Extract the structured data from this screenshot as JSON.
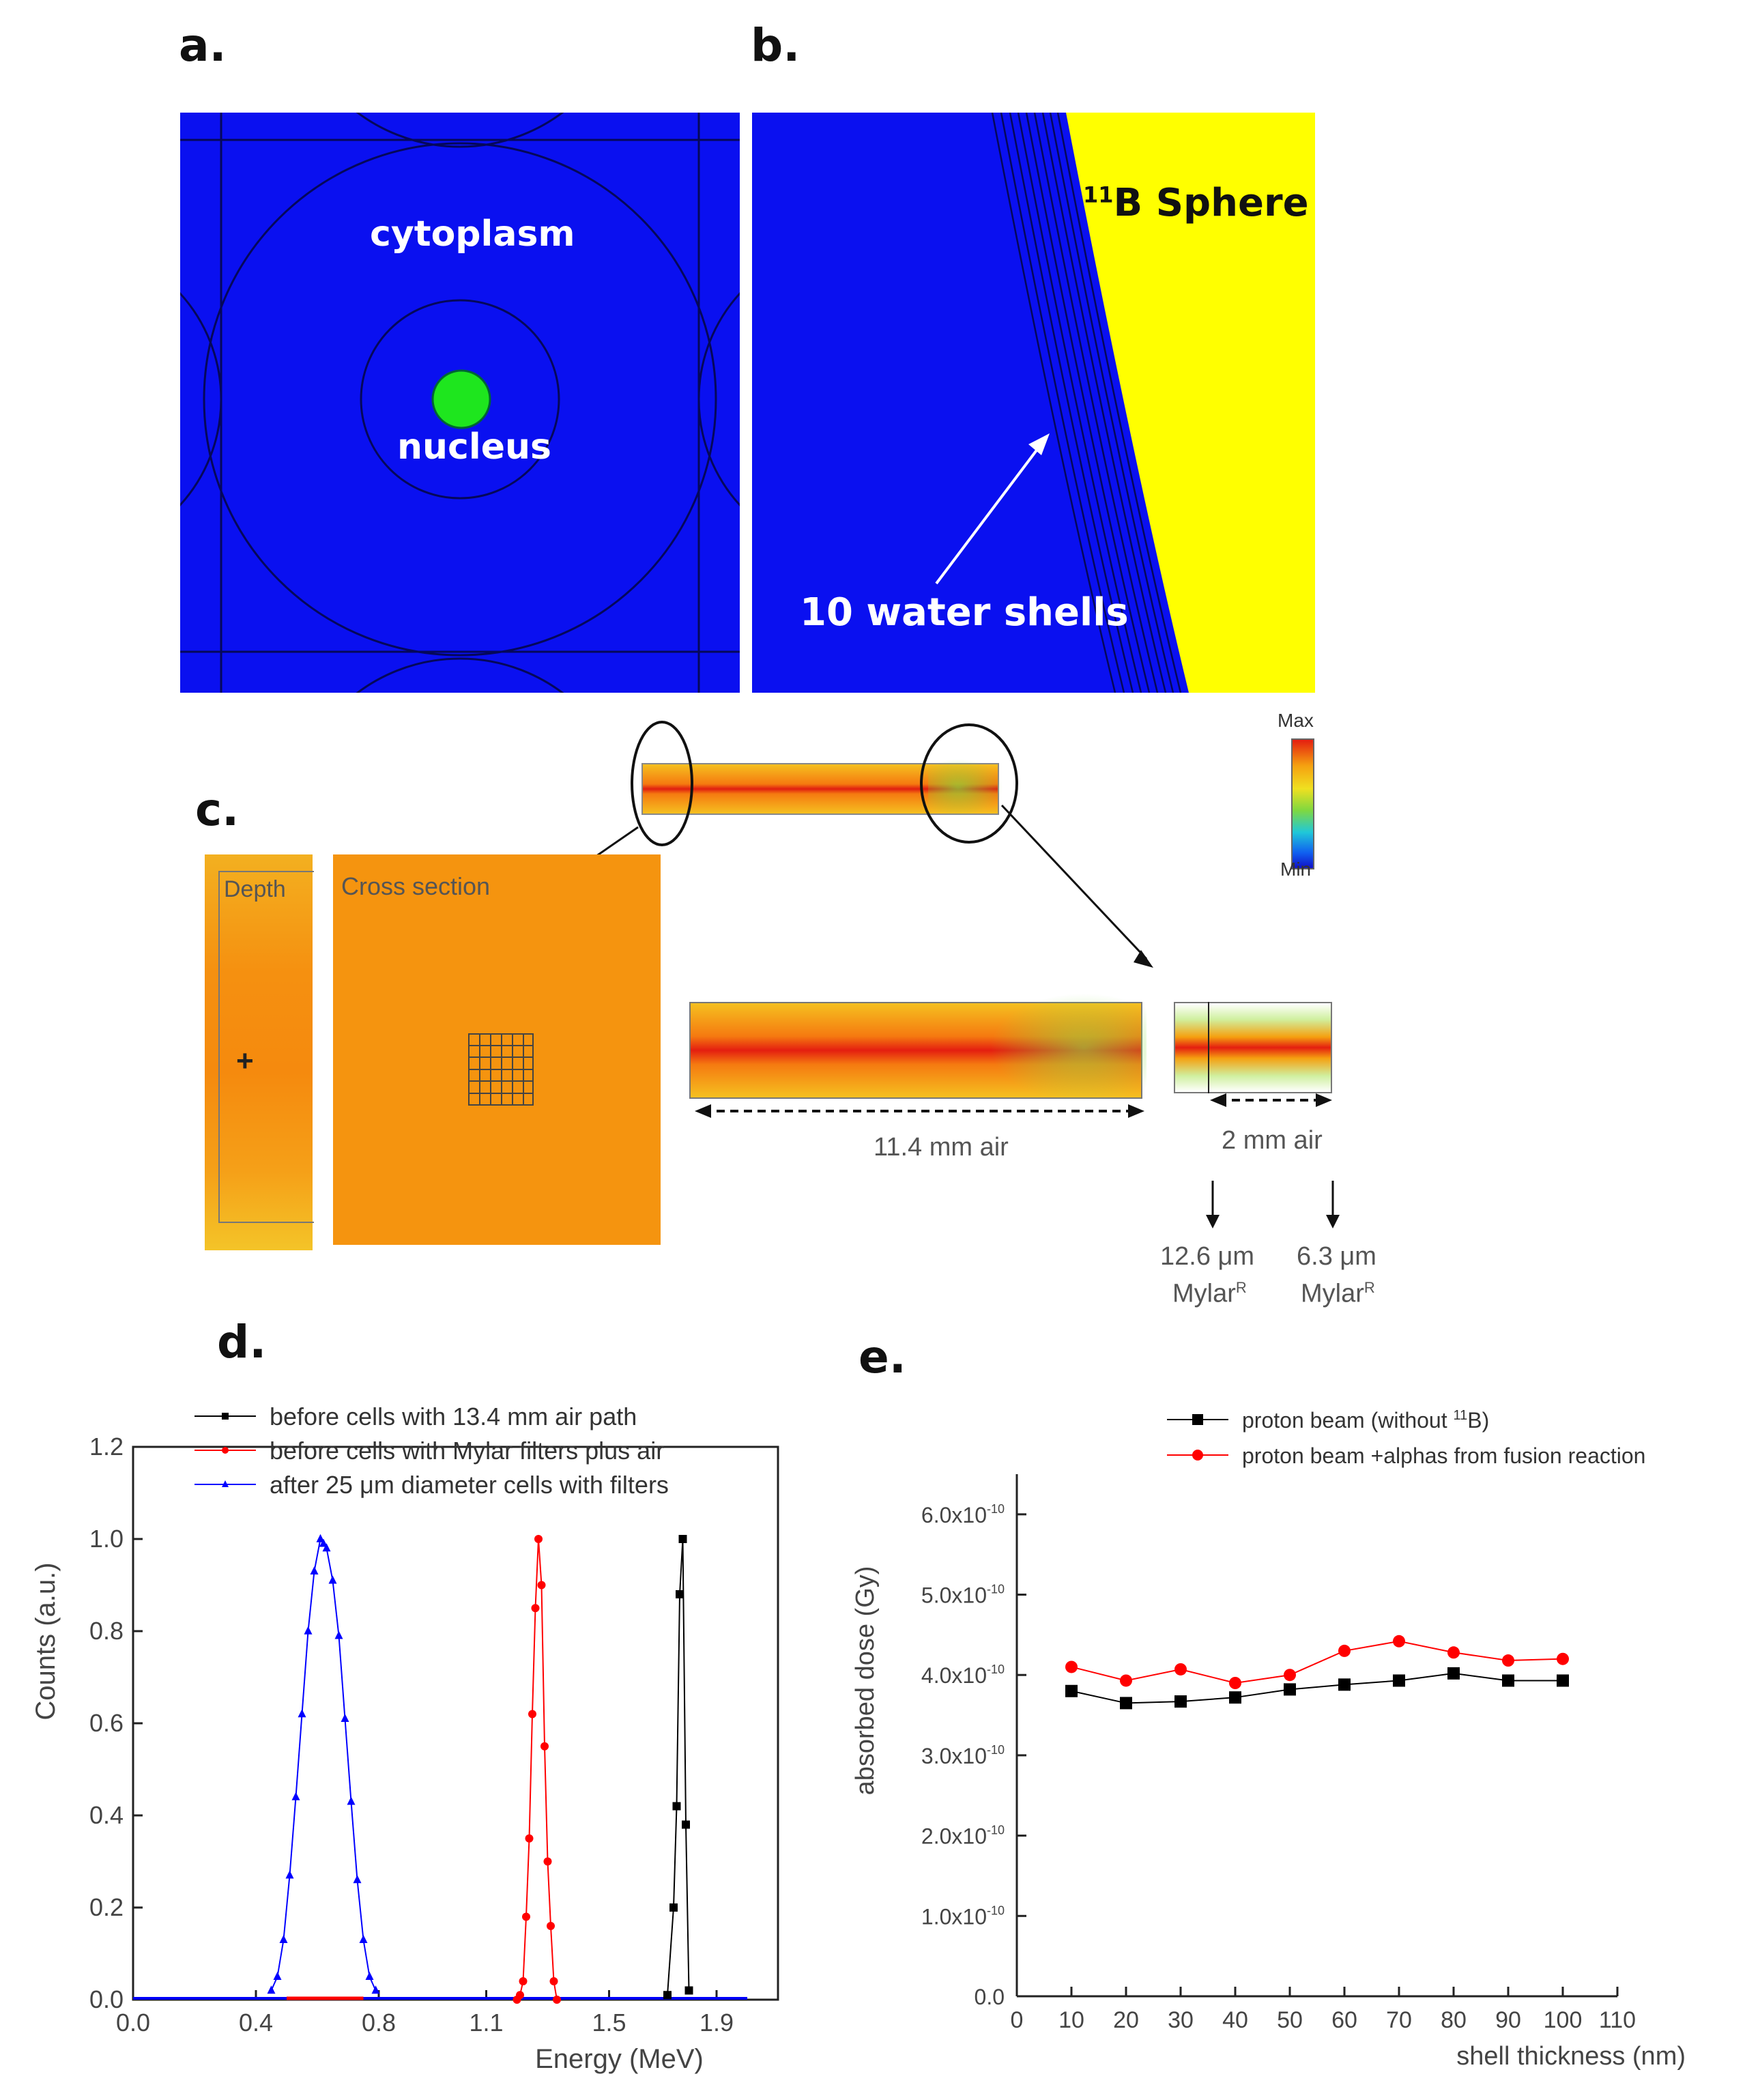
{
  "panels": {
    "a": {
      "letter": "a.",
      "label_cytoplasm": "cytoplasm",
      "label_nucleus": "nucleus"
    },
    "b": {
      "letter": "b.",
      "sphere_sup": "11",
      "sphere_text": "B Sphere",
      "shells_label": "10 water shells"
    },
    "c": {
      "letter": "c.",
      "colorbar_max": "Max",
      "colorbar_min": "Min",
      "depth_label": "Depth",
      "cross_label": "Cross section",
      "air_long": "11.4 mm air",
      "air_short": "2 mm air",
      "mylar1_value": "12.6 μm",
      "mylar1_name": "Mylar",
      "mylar2_value": "6.3 μm",
      "mylar2_name": "Mylar",
      "mylar_sup": "R"
    },
    "d": {
      "letter": "d."
    },
    "e": {
      "letter": "e."
    }
  },
  "colors": {
    "cell_blue": "#0a10f0",
    "sphere_yellow": "#ffff00",
    "nucleus_green": "#1ee61e",
    "dose_orange": "#f59a10"
  },
  "chart_data": [
    {
      "type": "scatter",
      "panel": "d",
      "xlabel": "Energy (MeV)",
      "ylabel": "Counts (a.u.)",
      "xlim": [
        0.0,
        2.1
      ],
      "ylim": [
        0.0,
        1.2
      ],
      "xticks": [
        "0.0",
        "0.4",
        "0.8",
        "1.1",
        "1.5",
        "1.9"
      ],
      "yticks": [
        "0.0",
        "0.2",
        "0.4",
        "0.6",
        "0.8",
        "1.0",
        "1.2"
      ],
      "legend_position": "top",
      "series": [
        {
          "name": "before cells with 13.4 mm air path",
          "color": "#000000",
          "marker": "square",
          "x": [
            1.74,
            1.76,
            1.77,
            1.78,
            1.79,
            1.8,
            1.81
          ],
          "y": [
            0.01,
            0.2,
            0.42,
            0.88,
            1.0,
            0.38,
            0.02
          ]
        },
        {
          "name": "before cells with Mylar filters plus air",
          "color": "#ff0000",
          "marker": "circle",
          "x": [
            1.25,
            1.26,
            1.27,
            1.28,
            1.29,
            1.3,
            1.31,
            1.32,
            1.33,
            1.34,
            1.35,
            1.36,
            1.37,
            1.38
          ],
          "y": [
            0.0,
            0.01,
            0.04,
            0.18,
            0.35,
            0.62,
            0.85,
            1.0,
            0.9,
            0.55,
            0.3,
            0.16,
            0.04,
            0.0
          ]
        },
        {
          "name": "after 25 μm diameter cells with filters",
          "color": "#0000ff",
          "marker": "triangle",
          "x": [
            0.45,
            0.47,
            0.49,
            0.51,
            0.53,
            0.55,
            0.57,
            0.59,
            0.61,
            0.62,
            0.63,
            0.65,
            0.67,
            0.69,
            0.71,
            0.73,
            0.75,
            0.77,
            0.79
          ],
          "y": [
            0.02,
            0.05,
            0.13,
            0.27,
            0.44,
            0.62,
            0.8,
            0.93,
            1.0,
            0.99,
            0.98,
            0.91,
            0.79,
            0.61,
            0.43,
            0.26,
            0.13,
            0.05,
            0.02
          ]
        }
      ]
    },
    {
      "type": "line",
      "panel": "e",
      "xlabel": "shell thickness (nm)",
      "ylabel": "absorbed dose (Gy)",
      "xlim": [
        0,
        110
      ],
      "ylim": [
        0.0,
        6.5e-10
      ],
      "xticks": [
        "0",
        "10",
        "20",
        "30",
        "40",
        "50",
        "60",
        "70",
        "80",
        "90",
        "100",
        "110"
      ],
      "yticks": [
        "0.0",
        "1.0x10",
        "2.0x10",
        "3.0x10",
        "4.0x10",
        "5.0x10",
        "6.0x10"
      ],
      "ytick_exponent": "-10",
      "legend_position": "top",
      "series": [
        {
          "name": "proton beam (without ",
          "name_sup": "11",
          "name_tail": "B)",
          "color": "#000000",
          "marker": "square",
          "x": [
            10,
            20,
            30,
            40,
            50,
            60,
            70,
            80,
            90,
            100
          ],
          "y": [
            3.8e-10,
            3.65e-10,
            3.67e-10,
            3.72e-10,
            3.82e-10,
            3.88e-10,
            3.93e-10,
            4.02e-10,
            3.93e-10,
            3.93e-10
          ]
        },
        {
          "name": "proton beam +alphas from fusion reaction",
          "color": "#ff0000",
          "marker": "circle",
          "x": [
            10,
            20,
            30,
            40,
            50,
            60,
            70,
            80,
            90,
            100
          ],
          "y": [
            4.1e-10,
            3.93e-10,
            4.07e-10,
            3.9e-10,
            4e-10,
            4.3e-10,
            4.42e-10,
            4.28e-10,
            4.18e-10,
            4.2e-10
          ]
        }
      ]
    }
  ]
}
